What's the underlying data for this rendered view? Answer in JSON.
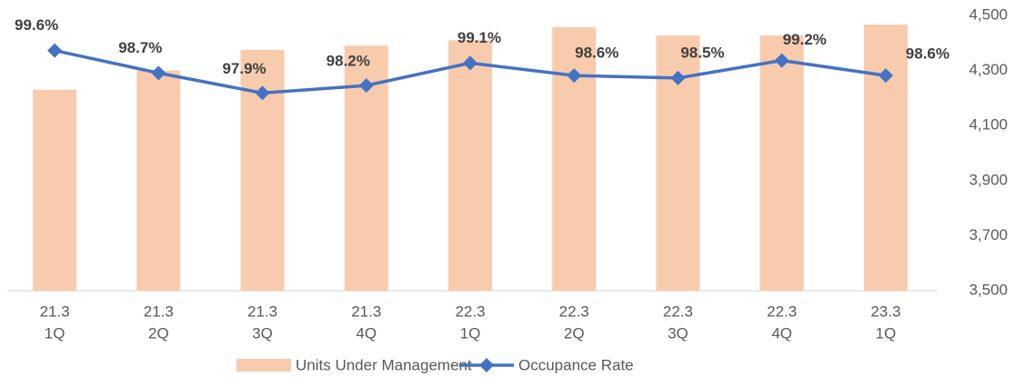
{
  "chart_data": {
    "type": "bar_line",
    "categories": [
      [
        "21.3",
        "1Q"
      ],
      [
        "21.3",
        "2Q"
      ],
      [
        "21.3",
        "3Q"
      ],
      [
        "21.3",
        "4Q"
      ],
      [
        "22.3",
        "1Q"
      ],
      [
        "22.3",
        "2Q"
      ],
      [
        "22.3",
        "3Q"
      ],
      [
        "22.3",
        "4Q"
      ],
      [
        "23.3",
        "1Q"
      ]
    ],
    "series": [
      {
        "name": "Units Under Management",
        "type": "bar",
        "axis": "y2",
        "color": "#f8cbad",
        "values": [
          4230,
          4300,
          4375,
          4390,
          4410,
          4457,
          4427,
          4427,
          4467
        ]
      },
      {
        "name": "Occupance Rate",
        "type": "line",
        "color": "#4472c4",
        "values": [
          99.6,
          98.7,
          97.9,
          98.2,
          99.1,
          98.6,
          98.5,
          99.2,
          98.6
        ],
        "value_labels": [
          "99.6%",
          "98.7%",
          "97.9%",
          "98.2%",
          "99.1%",
          "98.6%",
          "98.5%",
          "99.2%",
          "98.6%"
        ]
      }
    ],
    "ylim": [
      90,
      101
    ],
    "y2lim": [
      3500,
      4500
    ],
    "y2ticks": [
      {
        "value": 3500,
        "label": "3,500"
      },
      {
        "value": 3700,
        "label": "3,700"
      },
      {
        "value": 3900,
        "label": "3,900"
      },
      {
        "value": 4100,
        "label": "4,100"
      },
      {
        "value": 4300,
        "label": "4,300"
      },
      {
        "value": 4500,
        "label": "4,500"
      }
    ],
    "legend": "bottom"
  }
}
